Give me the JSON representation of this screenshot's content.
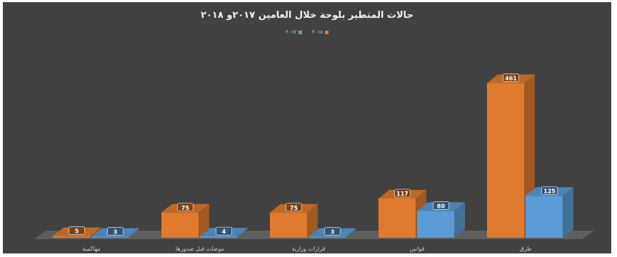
{
  "chart_data": {
    "type": "bar",
    "title": "حالات المتطير بلوحة خلال العامين ٢٠١٧و ٢٠١٨",
    "xlabel": "",
    "ylabel": "",
    "categories": [
      "طرق",
      "قوانين",
      "قرارات وزارية",
      "موضات قبل صدورها",
      "مهاكمية"
    ],
    "series": [
      {
        "name": "٢٠١٨",
        "values": [
          461,
          117,
          75,
          75,
          5
        ],
        "color": "#e07a2e"
      },
      {
        "name": "٢٠١٧",
        "values": [
          125,
          80,
          3,
          4,
          3
        ],
        "color": "#5a9bd5"
      }
    ],
    "ylim": [
      0,
      500
    ],
    "grid": false,
    "legend_position": "top"
  }
}
